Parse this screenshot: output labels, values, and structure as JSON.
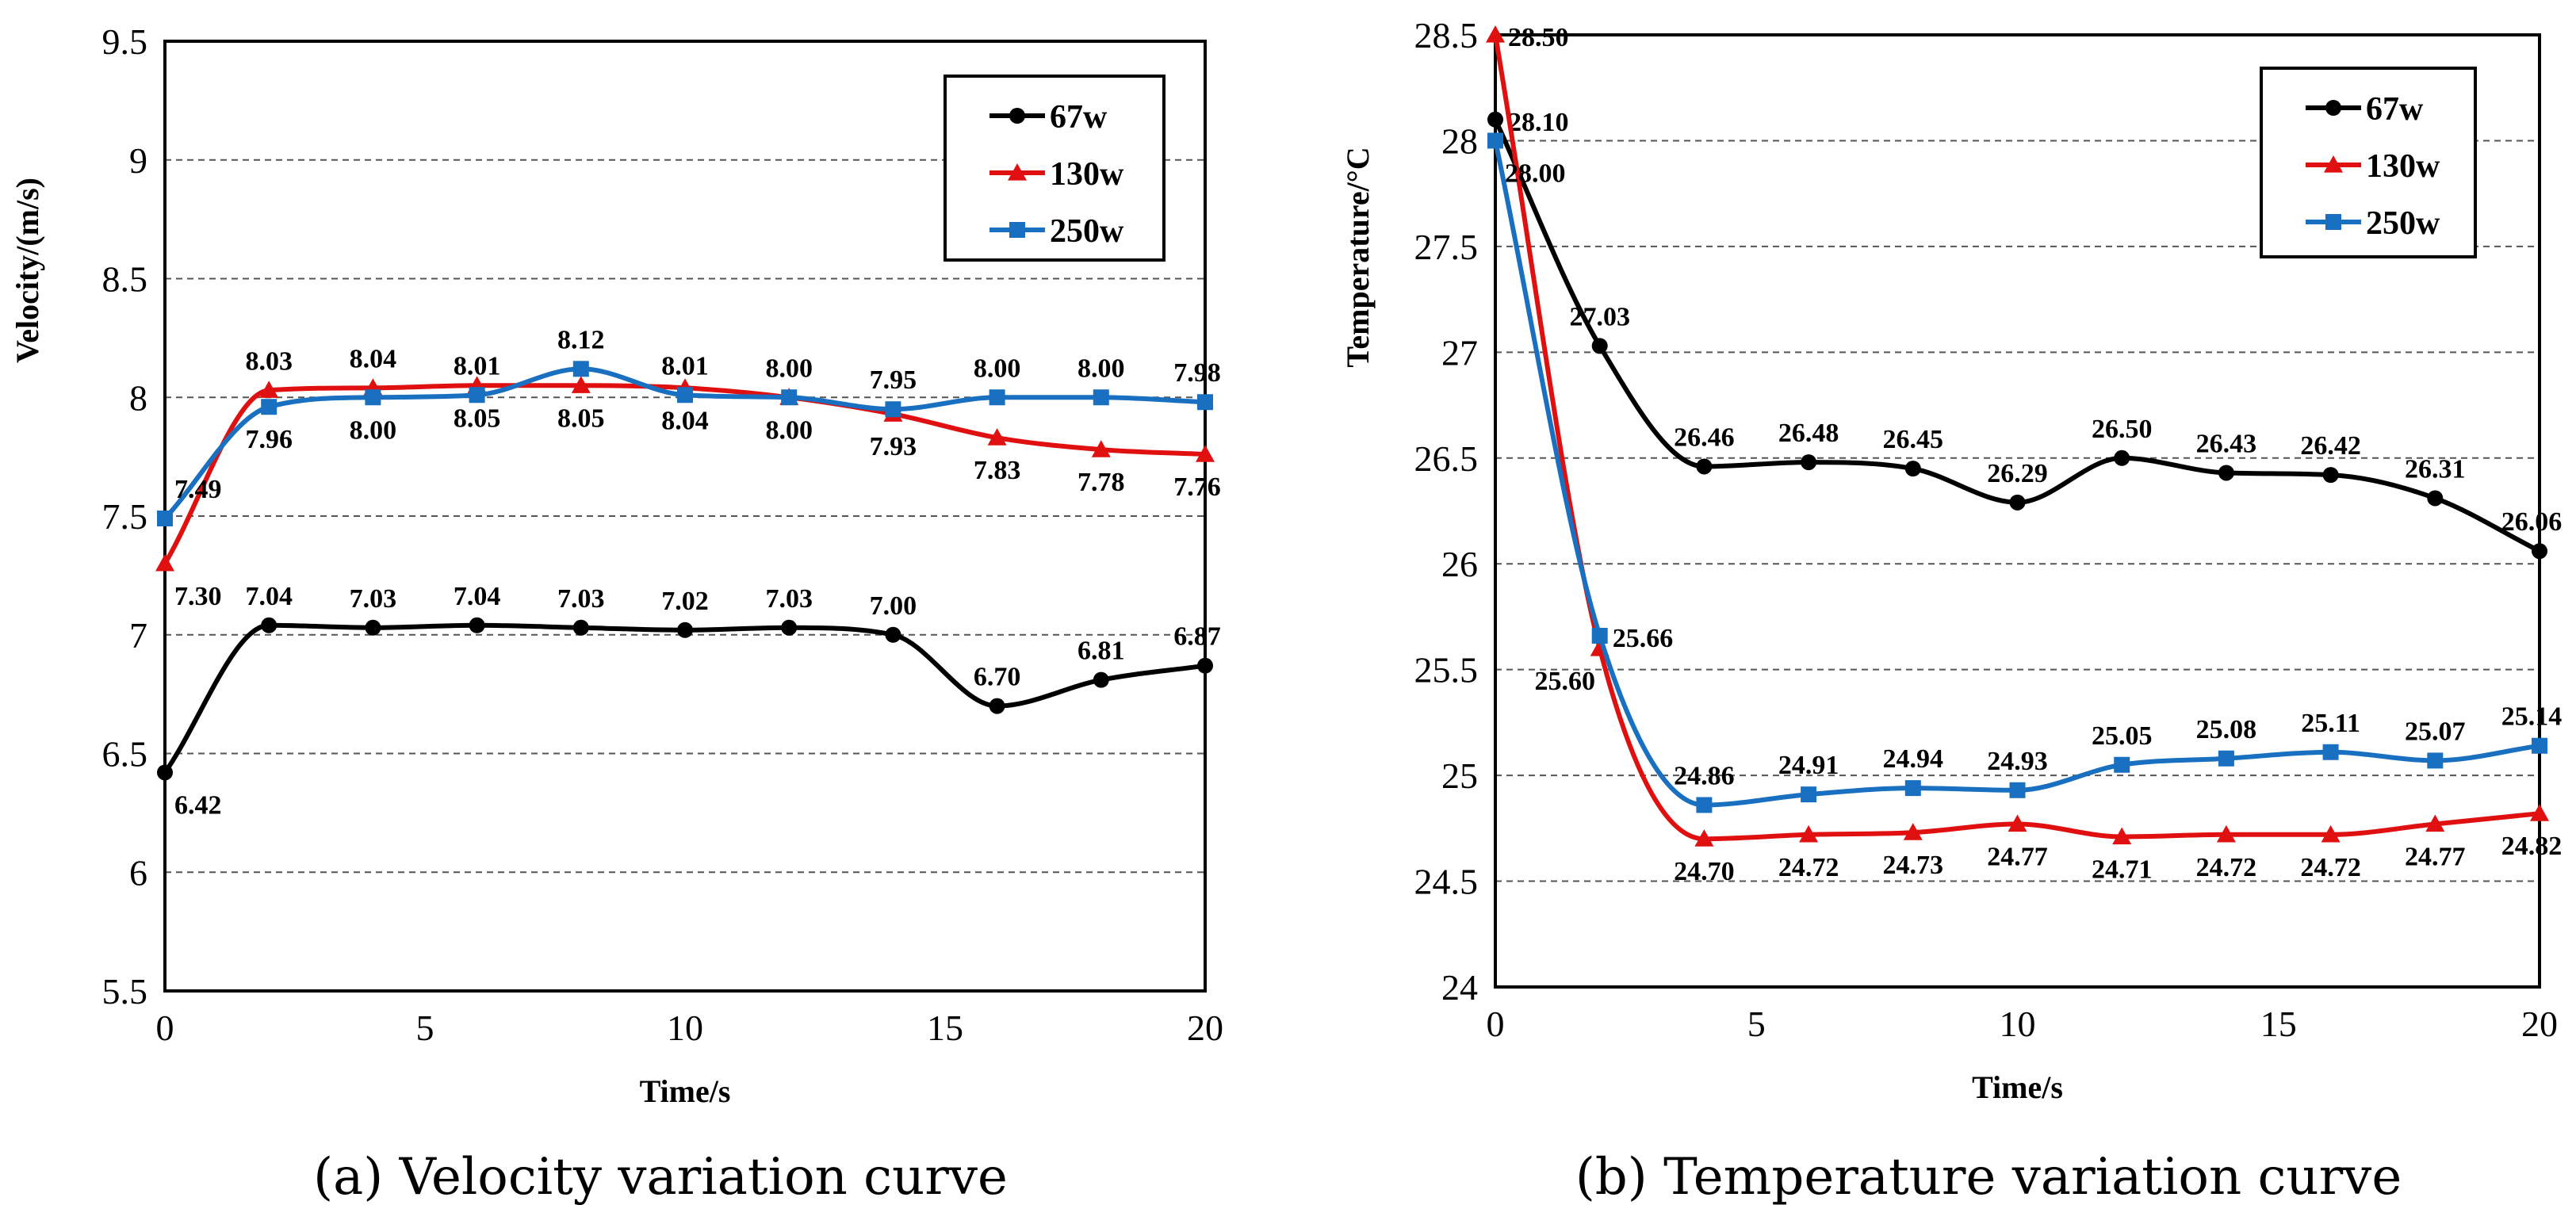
{
  "chart_data": [
    {
      "type": "line",
      "caption": "(a) Velocity variation curve",
      "xlabel": "Time/s",
      "ylabel": "Velocity/(m/s)",
      "xlim": [
        0,
        20
      ],
      "ylim": [
        5.5,
        9.5
      ],
      "xticks": [
        0,
        5,
        10,
        15,
        20
      ],
      "yticks": [
        5.5,
        6,
        6.5,
        7,
        7.5,
        8,
        8.5,
        9,
        9.5
      ],
      "grid": "horizontal dashed",
      "legend_position": "top-right",
      "x": [
        0,
        2,
        4,
        6,
        8,
        10,
        12,
        14,
        16,
        18,
        20
      ],
      "series": [
        {
          "name": "67w",
          "color": "#000000",
          "marker": "circle",
          "values": [
            6.42,
            7.04,
            7.03,
            7.04,
            7.03,
            7.02,
            7.03,
            7.0,
            6.7,
            6.81,
            6.87
          ],
          "labels": [
            "6.42",
            "7.04",
            "7.03",
            "7.04",
            "7.03",
            "7.02",
            "7.03",
            "7.00",
            "6.70",
            "6.81",
            "6.87"
          ],
          "label_side": [
            "below",
            "above",
            "above",
            "above",
            "above",
            "above",
            "above",
            "above",
            "above",
            "above",
            "above"
          ]
        },
        {
          "name": "130w",
          "color": "#e01010",
          "marker": "triangle",
          "values": [
            7.3,
            8.03,
            8.04,
            8.05,
            8.05,
            8.04,
            8.0,
            7.93,
            7.83,
            7.78,
            7.76
          ],
          "labels": [
            "7.30",
            "8.03",
            "8.04",
            "8.05",
            "8.05",
            "8.04",
            "8.00",
            "7.93",
            "7.83",
            "7.78",
            "7.76"
          ],
          "label_side": [
            "below",
            "above",
            "above",
            "below",
            "below",
            "below",
            "below",
            "below",
            "below",
            "below",
            "below"
          ]
        },
        {
          "name": "250w",
          "color": "#1a70c0",
          "marker": "square",
          "values": [
            7.49,
            7.96,
            8.0,
            8.01,
            8.12,
            8.01,
            8.0,
            7.95,
            8.0,
            8.0,
            7.98
          ],
          "labels": [
            "7.49",
            "7.96",
            "8.00",
            "8.01",
            "8.12",
            "8.01",
            "8.00",
            "7.95",
            "8.00",
            "8.00",
            "7.98"
          ],
          "label_side": [
            "above",
            "below",
            "below",
            "above",
            "above",
            "above",
            "above",
            "above",
            "above",
            "above",
            "above"
          ]
        }
      ]
    },
    {
      "type": "line",
      "caption": "(b) Temperature variation curve",
      "xlabel": "Time/s",
      "ylabel": "Temperature/°C",
      "xlim": [
        0,
        20
      ],
      "ylim": [
        24,
        28.5
      ],
      "xticks": [
        0,
        5,
        10,
        15,
        20
      ],
      "yticks": [
        24,
        24.5,
        25,
        25.5,
        26,
        26.5,
        27,
        27.5,
        28,
        28.5
      ],
      "grid": "horizontal dashed",
      "legend_position": "top-right",
      "x": [
        0,
        2,
        4,
        6,
        8,
        10,
        12,
        14,
        16,
        18,
        20
      ],
      "series": [
        {
          "name": "67w",
          "color": "#000000",
          "marker": "circle",
          "values": [
            28.1,
            27.03,
            26.46,
            26.48,
            26.45,
            26.29,
            26.5,
            26.43,
            26.42,
            26.31,
            26.06
          ],
          "labels": [
            "28.10",
            "27.03",
            "26.46",
            "26.48",
            "26.45",
            "26.29",
            "26.50",
            "26.43",
            "26.42",
            "26.31",
            "26.06"
          ],
          "label_side": [
            "right",
            "above",
            "above",
            "above",
            "above",
            "above",
            "above",
            "above",
            "above",
            "above",
            "above"
          ]
        },
        {
          "name": "130w",
          "color": "#e01010",
          "marker": "triangle",
          "values": [
            28.5,
            25.6,
            24.7,
            24.72,
            24.73,
            24.77,
            24.71,
            24.72,
            24.72,
            24.77,
            24.82
          ],
          "labels": [
            "28.50",
            "25.60",
            "24.70",
            "24.72",
            "24.73",
            "24.77",
            "24.71",
            "24.72",
            "24.72",
            "24.77",
            "24.82"
          ],
          "label_side": [
            "right",
            "below-left",
            "below",
            "below",
            "below",
            "below",
            "below",
            "below",
            "below",
            "below",
            "below"
          ]
        },
        {
          "name": "250w",
          "color": "#1a70c0",
          "marker": "square",
          "values": [
            28.0,
            25.66,
            24.86,
            24.91,
            24.94,
            24.93,
            25.05,
            25.08,
            25.11,
            25.07,
            25.14
          ],
          "labels": [
            "28.00",
            "25.66",
            "24.86",
            "24.91",
            "24.94",
            "24.93",
            "25.05",
            "25.08",
            "25.11",
            "25.07",
            "25.14"
          ],
          "label_side": [
            "below",
            "right",
            "above",
            "above",
            "above",
            "above",
            "above",
            "above",
            "above",
            "above",
            "above"
          ]
        }
      ]
    }
  ]
}
